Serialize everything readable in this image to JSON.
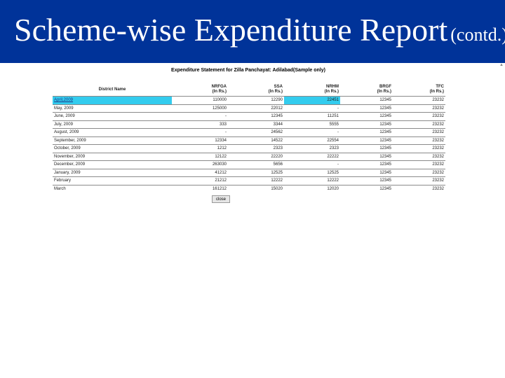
{
  "slide": {
    "title_main": "Scheme-wise Expenditure Report",
    "title_sub": "(contd.)",
    "accent_color": "#003399"
  },
  "report": {
    "heading": "Expenditure Statement for Zilla Panchayat: Adilabad(Sample only)",
    "columns": [
      {
        "line1": "District Name",
        "line2": ""
      },
      {
        "line1": "NRFGA",
        "line2": "(In Rs.)"
      },
      {
        "line1": "SSA",
        "line2": "(In Rs.)"
      },
      {
        "line1": "NRHM",
        "line2": "(In Rs.)"
      },
      {
        "line1": "BRGF",
        "line2": "(In Rs.)"
      },
      {
        "line1": "TFC",
        "line2": "(In Rs.)"
      }
    ],
    "rows": [
      [
        "April,2009",
        "110000",
        "12290",
        "22451",
        "12345",
        "23232"
      ],
      [
        "May, 2009",
        "125000",
        "22012",
        "-",
        "12345",
        "23232"
      ],
      [
        "June, 2009",
        "-",
        "12345",
        "11251",
        "12345",
        "23232"
      ],
      [
        "July, 2009",
        "333",
        "3344",
        "5555",
        "12345",
        "23232"
      ],
      [
        "August, 2009",
        "-",
        "24562",
        "-",
        "12345",
        "23232"
      ],
      [
        "September, 2009",
        "12334",
        "14522",
        "22554",
        "12345",
        "23232"
      ],
      [
        "October, 2009",
        "1212",
        "2323",
        "2323",
        "12345",
        "23232"
      ],
      [
        "November, 2009",
        "12122",
        "22220",
        "22222",
        "12345",
        "23232"
      ],
      [
        "December, 2009",
        "263030",
        "5656",
        "-",
        "12345",
        "23232"
      ],
      [
        "January, 2009",
        "41212",
        "12525",
        "12525",
        "12345",
        "23232"
      ],
      [
        "February",
        "21212",
        "12222",
        "12222",
        "12345",
        "23232"
      ],
      [
        "March",
        "161212",
        "15020",
        "12020",
        "12345",
        "23232"
      ]
    ],
    "highlight_color": "#33ccee",
    "close_label": "close"
  }
}
